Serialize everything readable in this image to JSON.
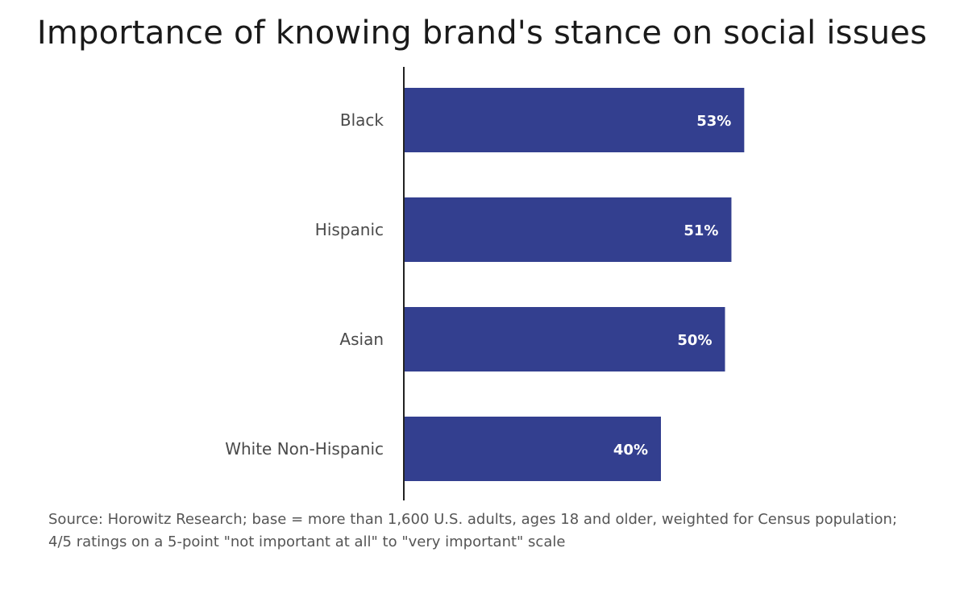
{
  "chart_data": {
    "type": "bar",
    "orientation": "horizontal",
    "title": "Importance of knowing brand's stance on social issues",
    "categories": [
      "Black",
      "Hispanic",
      "Asian",
      "White Non-Hispanic"
    ],
    "values": [
      53,
      51,
      50,
      40
    ],
    "value_labels": [
      "53%",
      "51%",
      "50%",
      "40%"
    ],
    "xlim": [
      0,
      60
    ],
    "xlabel": "",
    "ylabel": "",
    "grid": false,
    "legend": "none",
    "bar_color": "#333f8f",
    "source": "Source: Horowitz Research; base = more than 1,600 U.S. adults, ages 18 and older, weighted for Census population; 4/5 ratings on a 5-point \"not important at all\" to \"very important\" scale"
  }
}
